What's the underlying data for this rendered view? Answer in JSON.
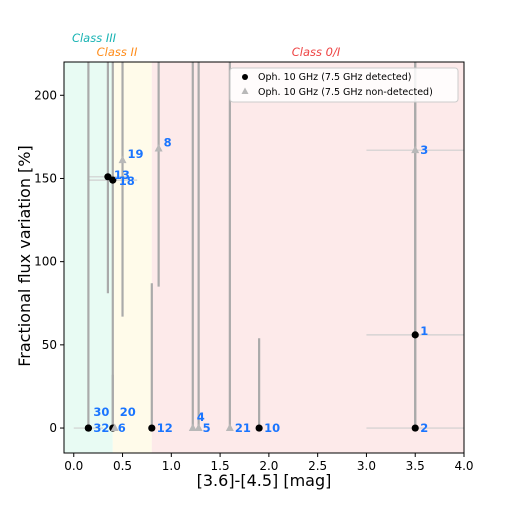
{
  "chart_data": {
    "type": "scatter",
    "title": "",
    "xlabel": "[3.6]-[4.5] [mag]",
    "ylabel": "Fractional flux variation [%]",
    "xlim": [
      -0.1,
      4.0
    ],
    "ylim": [
      -15,
      220
    ],
    "xticks": [
      "0.0",
      "0.5",
      "1.0",
      "1.5",
      "2.0",
      "2.5",
      "3.0",
      "3.5",
      "4.0"
    ],
    "yticks": [
      "0",
      "50",
      "100",
      "150",
      "200"
    ],
    "grid": false,
    "legend_position": "top-right",
    "class_regions": [
      {
        "label": "Class III",
        "x_from": -0.1,
        "x_to": 0.4,
        "color": "#e8fbf3",
        "label_color": "#17b3b3"
      },
      {
        "label": "Class II",
        "x_from": 0.4,
        "x_to": 0.8,
        "color": "#fffbea",
        "label_color": "#ff8c1a"
      },
      {
        "label": "Class 0/I",
        "x_from": 0.8,
        "x_to": 4.0,
        "color": "#fdeaea",
        "label_color": "#ee4444"
      }
    ],
    "series": [
      {
        "name": "Oph. 10 GHz (7.5 GHz detected)",
        "marker": "circle",
        "color": "#000000",
        "points": [
          {
            "id": "1",
            "x": 3.5,
            "y": 56,
            "y_err_low": 56,
            "y_err_high": 164,
            "x_err": 0.5
          },
          {
            "id": "2",
            "x": 3.5,
            "y": 0,
            "y_err_low": 0,
            "y_err_high": 0,
            "x_err": 0.5
          },
          {
            "id": "10",
            "x": 1.9,
            "y": 0,
            "y_err_low": 0,
            "y_err_high": 54,
            "x_err": 0
          },
          {
            "id": "12",
            "x": 0.8,
            "y": 0,
            "y_err_low": 0,
            "y_err_high": 87,
            "x_err": 0
          },
          {
            "id": "13",
            "x": 0.35,
            "y": 151,
            "y_err_low": 70,
            "y_err_high": 69,
            "x_err": 0.2
          },
          {
            "id": "18",
            "x": 0.4,
            "y": 149,
            "y_err_low": 149,
            "y_err_high": 71,
            "x_err": 0.25
          },
          {
            "id": "30",
            "x": 0.15,
            "y": 0,
            "y_err_low": 0,
            "y_err_high": 220,
            "x_err": 0.15
          },
          {
            "id": "32",
            "x": 0.15,
            "y": 0,
            "y_err_low": 0,
            "y_err_high": 0,
            "x_err": 0
          },
          {
            "id": "6",
            "x": 0.4,
            "y": 0,
            "y_err_low": 0,
            "y_err_high": 32,
            "x_err": 0
          }
        ]
      },
      {
        "name": "Oph. 10 GHz (7.5 GHz non-detected)",
        "marker": "triangle",
        "color": "#b8b8b8",
        "points": [
          {
            "id": "3",
            "x": 3.5,
            "y": 167,
            "y_err_low": 167,
            "y_err_high": 53,
            "x_err": 0.5
          },
          {
            "id": "4",
            "x": 1.22,
            "y": 0,
            "y_err_low": 0,
            "y_err_high": 220,
            "x_err": 0
          },
          {
            "id": "5",
            "x": 1.28,
            "y": 0,
            "y_err_low": 0,
            "y_err_high": 220,
            "x_err": 0
          },
          {
            "id": "8",
            "x": 0.87,
            "y": 168,
            "y_err_low": 83,
            "y_err_high": 52,
            "x_err": 0
          },
          {
            "id": "19",
            "x": 0.5,
            "y": 161,
            "y_err_low": 94,
            "y_err_high": 59,
            "x_err": 0
          },
          {
            "id": "20",
            "x": 0.42,
            "y": 0,
            "y_err_low": 0,
            "y_err_high": 0,
            "x_err": 0
          },
          {
            "id": "21",
            "x": 1.6,
            "y": 0,
            "y_err_low": 0,
            "y_err_high": 220,
            "x_err": 0
          }
        ]
      }
    ]
  },
  "point_label_color": "#1a75ff"
}
